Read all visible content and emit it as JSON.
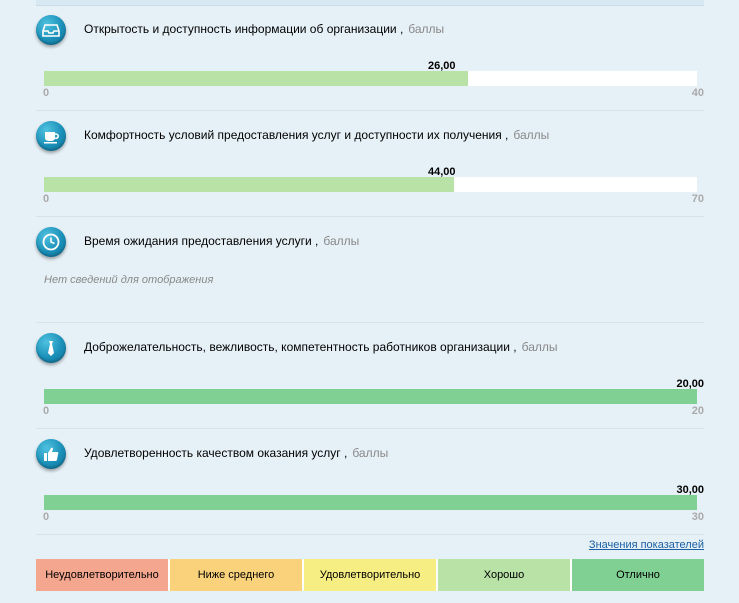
{
  "indicators": [
    {
      "title": "Открытость и доступность информации об организации ,",
      "unit": "баллы",
      "value": "26,00",
      "min": "0",
      "max": "40",
      "fraction": 0.65,
      "icon": "inbox-tray-icon",
      "fill_color": "#b9e3a6"
    },
    {
      "title": "Комфортность условий предоставления услуг и доступности их получения ,",
      "unit": "баллы",
      "value": "44,00",
      "min": "0",
      "max": "70",
      "fraction": 0.6286,
      "icon": "coffee-cup-icon",
      "fill_color": "#b9e3a6"
    },
    {
      "title": "Время ожидания предоставления услуги ,",
      "unit": "баллы",
      "no_data": "Нет сведений для отображения",
      "icon": "clock-icon"
    },
    {
      "title": "Доброжелательность, вежливость, компетентность работников организации ,",
      "unit": "баллы",
      "value": "20,00",
      "min": "0",
      "max": "20",
      "fraction": 1.0,
      "icon": "necktie-icon",
      "fill_color": "#80cf93"
    },
    {
      "title": "Удовлетворенность качеством оказания услуг ,",
      "unit": "баллы",
      "value": "30,00",
      "min": "0",
      "max": "30",
      "fraction": 1.0,
      "icon": "thumbs-up-icon",
      "fill_color": "#80cf93"
    }
  ],
  "legend_link": "Значения показателей",
  "legend": [
    {
      "label": "Неудовлетворительно",
      "color": "#f5a68e"
    },
    {
      "label": "Ниже среднего",
      "color": "#fbd27c"
    },
    {
      "label": "Удовлетворительно",
      "color": "#f7ee83"
    },
    {
      "label": "Хорошо",
      "color": "#b9e3a6"
    },
    {
      "label": "Отлично",
      "color": "#80cf93"
    }
  ]
}
